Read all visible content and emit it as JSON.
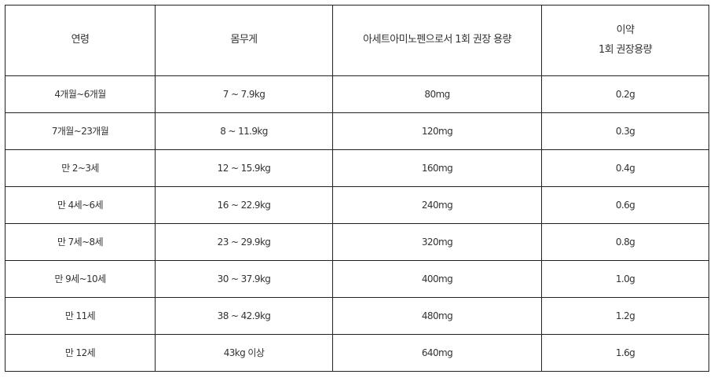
{
  "table": {
    "headers": {
      "age": "연령",
      "weight": "몸무게",
      "acetaminophen_dose": "아세트아미노펜으로서 1회 권장 용량",
      "drug_dose_line1": "이약",
      "drug_dose_line2": "1회 권장용량"
    },
    "rows": [
      {
        "age": "4개월~6개월",
        "weight": "7 ~ 7.9kg",
        "acetaminophen_dose": "80mg",
        "drug_dose": "0.2g"
      },
      {
        "age": "7개월~23개월",
        "weight": "8 ~ 11.9kg",
        "acetaminophen_dose": "120mg",
        "drug_dose": "0.3g"
      },
      {
        "age": "만 2~3세",
        "weight": "12 ~ 15.9kg",
        "acetaminophen_dose": "160mg",
        "drug_dose": "0.4g"
      },
      {
        "age": "만 4세~6세",
        "weight": "16 ~ 22.9kg",
        "acetaminophen_dose": "240mg",
        "drug_dose": "0.6g"
      },
      {
        "age": "만 7세~8세",
        "weight": "23 ~ 29.9kg",
        "acetaminophen_dose": "320mg",
        "drug_dose": "0.8g"
      },
      {
        "age": "만 9세~10세",
        "weight": "30 ~ 37.9kg",
        "acetaminophen_dose": "400mg",
        "drug_dose": "1.0g"
      },
      {
        "age": "만 11세",
        "weight": "38 ~ 42.9kg",
        "acetaminophen_dose": "480mg",
        "drug_dose": "1.2g"
      },
      {
        "age": "만 12세",
        "weight": "43kg 이상",
        "acetaminophen_dose": "640mg",
        "drug_dose": "1.6g"
      }
    ]
  }
}
